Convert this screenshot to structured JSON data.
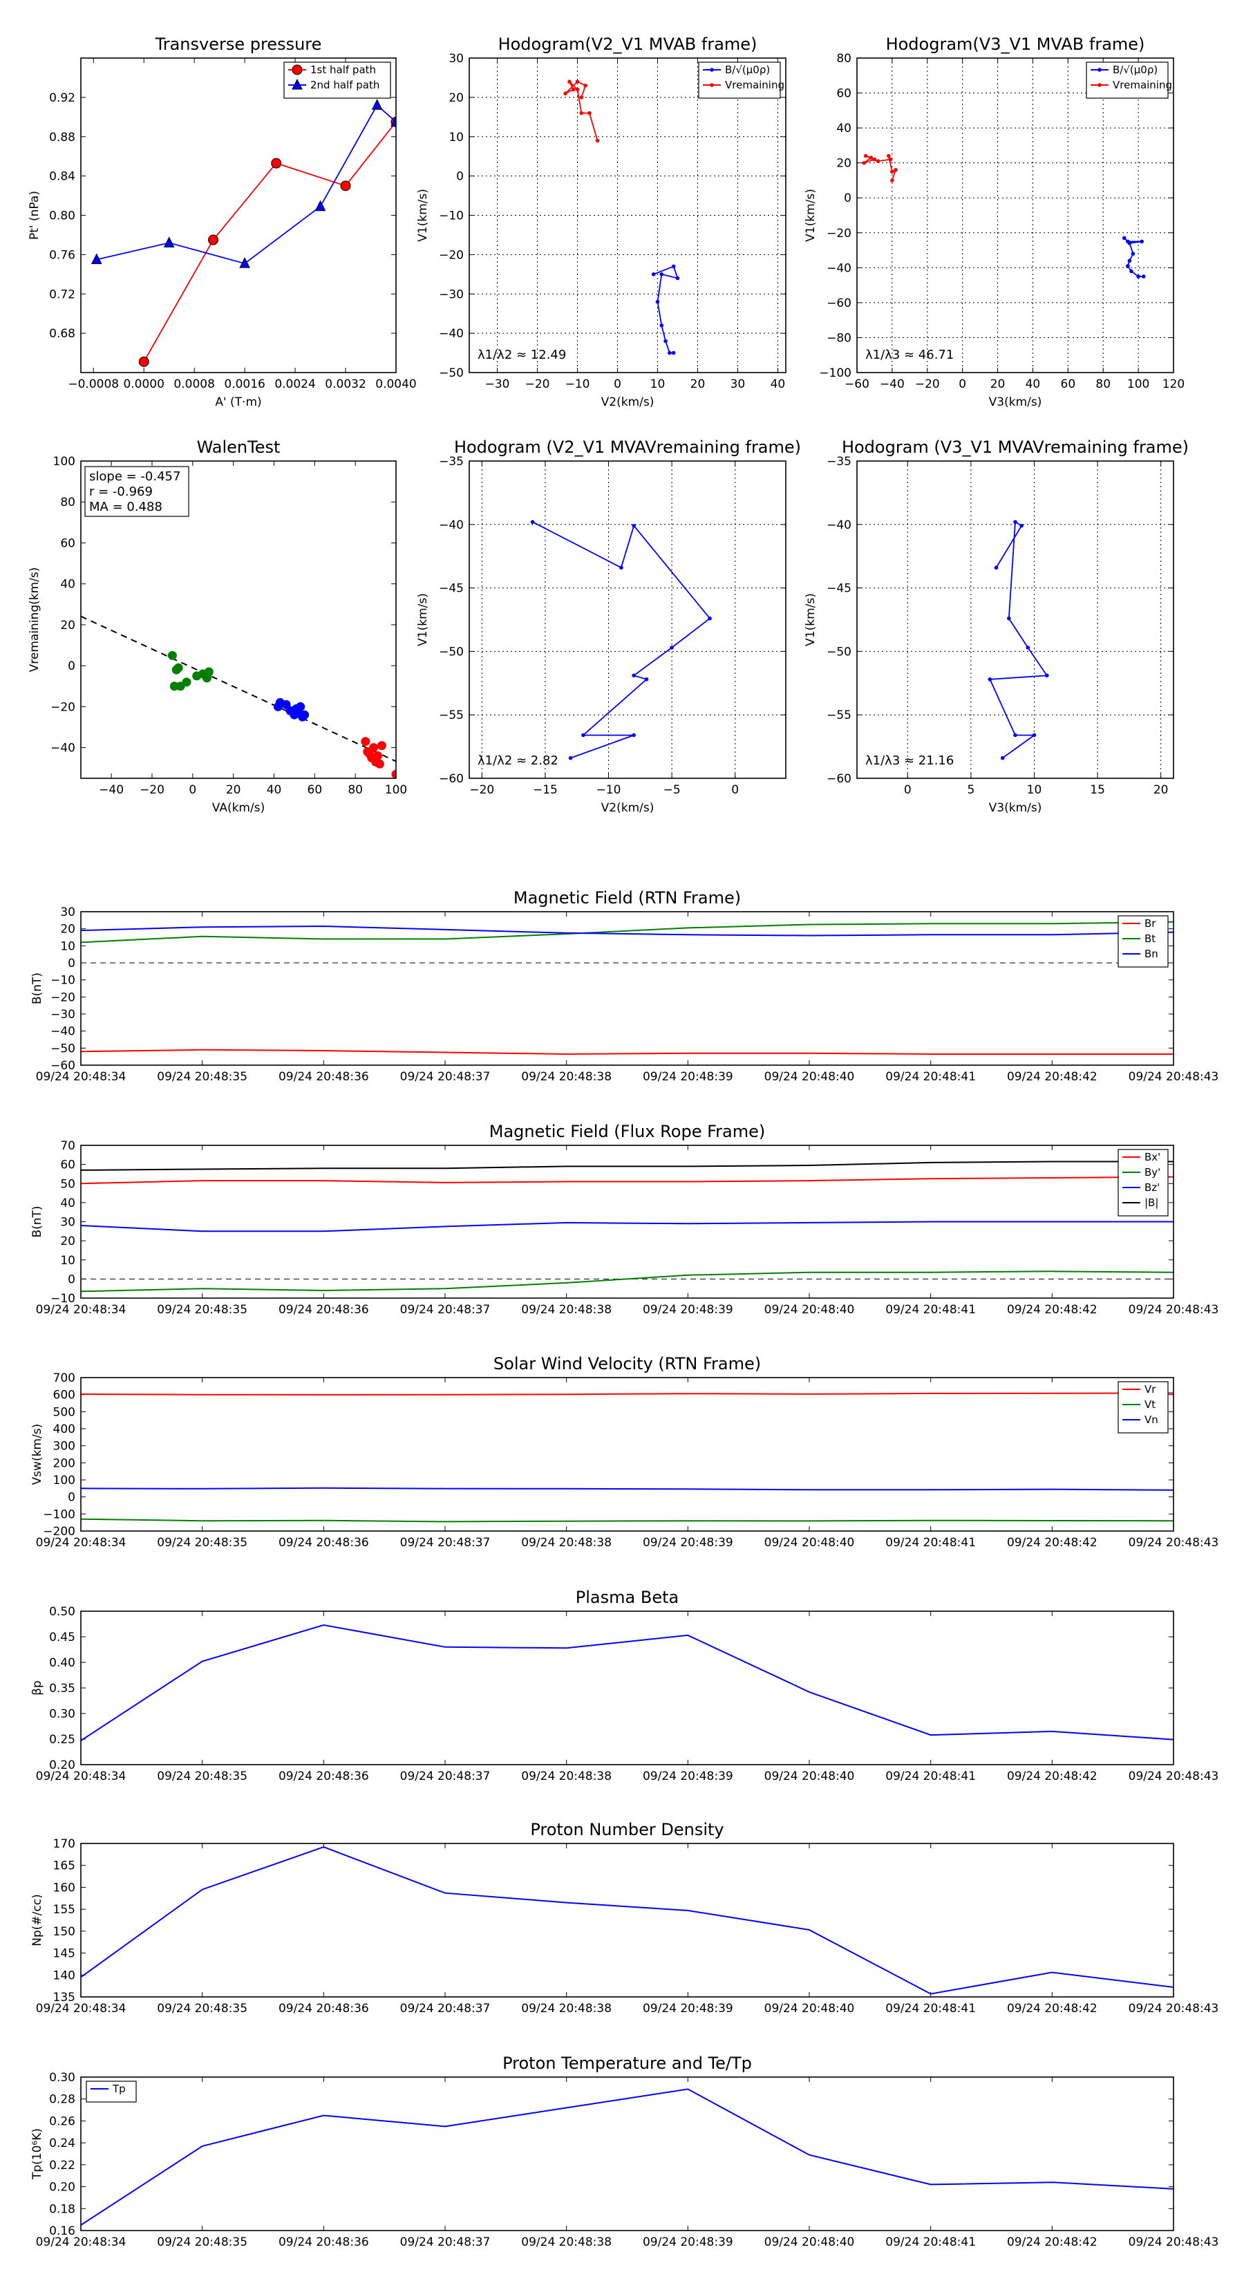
{
  "colors": {
    "red": "#ff0000",
    "green": "#008000",
    "blue": "#0000ff",
    "black": "#000000",
    "grid": "#000000"
  },
  "chart_data": [
    {
      "type": "line",
      "id": "tp",
      "title": "Transverse pressure",
      "xlabel": "A' (T·m)",
      "ylabel": "Pt' (nPa)",
      "xlim": [
        -0.001,
        0.004
      ],
      "ylim": [
        0.64,
        0.96
      ],
      "xticks": [
        -0.0008,
        0.0,
        0.0008,
        0.0016,
        0.0024,
        0.0032,
        0.004
      ],
      "xtick_labels": [
        "−0.0008",
        "0.0000",
        "0.0008",
        "0.0016",
        "0.0024",
        "0.0032",
        "0.0040"
      ],
      "yticks": [
        0.68,
        0.72,
        0.76,
        0.8,
        0.84,
        0.88,
        0.92
      ],
      "ytick_labels": [
        "0.68",
        "0.72",
        "0.76",
        "0.80",
        "0.84",
        "0.88",
        "0.92"
      ],
      "grid": false,
      "legend": "top-right",
      "series": [
        {
          "name": "1st half path",
          "color": "red",
          "marker": "circle",
          "x": [
            0.0,
            0.0011,
            0.0021,
            0.0032,
            0.004
          ],
          "y": [
            0.651,
            0.775,
            0.853,
            0.83,
            0.895
          ]
        },
        {
          "name": "2nd half path",
          "color": "blue",
          "marker": "triangle",
          "x": [
            -0.00075,
            0.0004,
            0.0016,
            0.0028,
            0.0037,
            0.004
          ],
          "y": [
            0.755,
            0.772,
            0.751,
            0.809,
            0.912,
            0.895
          ]
        }
      ]
    },
    {
      "type": "line",
      "id": "hodo1",
      "title": "Hodogram(V2_V1 MVAB frame)",
      "xlabel": "V2(km/s)",
      "ylabel": "V1(km/s)",
      "xlim": [
        -37,
        42
      ],
      "ylim": [
        -50,
        30
      ],
      "xticks": [
        -30,
        -20,
        -10,
        0,
        10,
        20,
        30,
        40
      ],
      "xtick_labels": [
        "−30",
        "−20",
        "−10",
        "0",
        "10",
        "20",
        "30",
        "40"
      ],
      "yticks": [
        -50,
        -40,
        -30,
        -20,
        -10,
        0,
        10,
        20,
        30
      ],
      "ytick_labels": [
        "−50",
        "−40",
        "−30",
        "−20",
        "−10",
        "0",
        "10",
        "20",
        "30"
      ],
      "grid": true,
      "legend": "top-right",
      "annotation": "λ1/λ2 ≈ 12.49",
      "series": [
        {
          "name": "B/√(μ0ρ)",
          "color": "blue",
          "marker": "dot",
          "x": [
            9,
            14,
            15,
            11,
            10,
            11,
            12,
            13,
            14
          ],
          "y": [
            -25,
            -23,
            -26,
            -25,
            -32,
            -38,
            -42,
            -45,
            -45
          ]
        },
        {
          "name": "Vremaining",
          "color": "red",
          "marker": "dot",
          "x": [
            -5,
            -7,
            -9,
            -10,
            -12,
            -11,
            -13,
            -10,
            -8,
            -9
          ],
          "y": [
            9,
            16,
            16,
            22,
            24,
            22,
            21,
            24,
            23,
            20
          ]
        }
      ]
    },
    {
      "type": "line",
      "id": "hodo2",
      "title": "Hodogram(V3_V1 MVAB frame)",
      "xlabel": "V3(km/s)",
      "ylabel": "V1(km/s)",
      "xlim": [
        -60,
        120
      ],
      "ylim": [
        -100,
        80
      ],
      "xticks": [
        -60,
        -40,
        -20,
        0,
        20,
        40,
        60,
        80,
        100,
        120
      ],
      "xtick_labels": [
        "−60",
        "−40",
        "−20",
        "0",
        "20",
        "40",
        "60",
        "80",
        "100",
        "120"
      ],
      "yticks": [
        -100,
        -80,
        -60,
        -40,
        -20,
        0,
        20,
        40,
        60,
        80
      ],
      "ytick_labels": [
        "−100",
        "−80",
        "−60",
        "−40",
        "−20",
        "0",
        "20",
        "40",
        "60",
        "80"
      ],
      "grid": true,
      "legend": "top-right",
      "annotation": "λ1/λ3 ≈ 46.71",
      "series": [
        {
          "name": "B/√(μ0ρ)",
          "color": "blue",
          "marker": "dot",
          "x": [
            92,
            94,
            102,
            95,
            97,
            95,
            94,
            96,
            100,
            103
          ],
          "y": [
            -23,
            -25,
            -25,
            -26,
            -32,
            -36,
            -39,
            -42,
            -45,
            -45
          ]
        },
        {
          "name": "Vremaining",
          "color": "red",
          "marker": "dot",
          "x": [
            -40,
            -38,
            -40,
            -42,
            -41,
            -48,
            -55,
            -52,
            -56,
            -50
          ],
          "y": [
            10,
            16,
            15,
            24,
            22,
            21,
            24,
            23,
            20,
            22
          ]
        }
      ]
    },
    {
      "type": "scatter",
      "id": "walen",
      "title": "WalenTest",
      "xlabel": "VA(km/s)",
      "ylabel": "Vremaining(km/s)",
      "xlim": [
        -55,
        100
      ],
      "ylim": [
        -55,
        100
      ],
      "xticks": [
        -40,
        -20,
        0,
        20,
        40,
        60,
        80,
        100
      ],
      "xtick_labels": [
        "−40",
        "−20",
        "0",
        "20",
        "40",
        "60",
        "80",
        "100"
      ],
      "yticks": [
        -40,
        -20,
        0,
        20,
        40,
        60,
        80,
        100
      ],
      "ytick_labels": [
        "−40",
        "−20",
        "0",
        "20",
        "40",
        "60",
        "80",
        "100"
      ],
      "grid": false,
      "stats": [
        "slope = -0.457",
        "r = -0.969",
        "MA = 0.488"
      ],
      "fit": {
        "slope": -0.457,
        "intercept": -1.0,
        "style": "dashed"
      },
      "series": [
        {
          "name": "green",
          "color": "green",
          "x": [
            -10,
            -8,
            -7,
            -6,
            -3,
            2,
            5,
            7,
            8,
            -9
          ],
          "y": [
            5,
            -2,
            -1,
            -10,
            -8,
            -5,
            -4,
            -6,
            -3,
            -10
          ]
        },
        {
          "name": "blue",
          "color": "blue",
          "x": [
            42,
            43,
            46,
            48,
            50,
            52,
            53,
            54,
            55,
            51
          ],
          "y": [
            -20,
            -18,
            -19,
            -22,
            -24,
            -23,
            -20,
            -25,
            -24,
            -21
          ]
        },
        {
          "name": "red",
          "color": "red",
          "x": [
            85,
            86,
            88,
            89,
            90,
            91,
            92,
            93,
            100,
            87
          ],
          "y": [
            -37,
            -42,
            -45,
            -40,
            -47,
            -44,
            -48,
            -39,
            -53,
            -43
          ]
        }
      ]
    },
    {
      "type": "line",
      "id": "hodo3",
      "title": "Hodogram (V2_V1 MVAVremaining frame)",
      "xlabel": "V2(km/s)",
      "ylabel": "V1(km/s)",
      "xlim": [
        -21,
        4
      ],
      "ylim": [
        -60,
        -35
      ],
      "xticks": [
        -20,
        -15,
        -10,
        -5,
        0
      ],
      "xtick_labels": [
        "−20",
        "−15",
        "−10",
        "−5",
        "0"
      ],
      "yticks": [
        -60,
        -55,
        -50,
        -45,
        -40,
        -35
      ],
      "ytick_labels": [
        "−60",
        "−55",
        "−50",
        "−45",
        "−40",
        "−35"
      ],
      "grid": true,
      "annotation": "λ1/λ2 ≈ 2.82",
      "series": [
        {
          "name": "B",
          "color": "blue",
          "marker": "dot",
          "x": [
            -16,
            -9,
            -8,
            -2,
            -5,
            -8,
            -7,
            -12,
            -8,
            -13
          ],
          "y": [
            -39.8,
            -43.4,
            -40.1,
            -47.4,
            -49.7,
            -51.9,
            -52.2,
            -56.6,
            -56.6,
            -58.4
          ]
        }
      ]
    },
    {
      "type": "line",
      "id": "hodo4",
      "title": "Hodogram (V3_V1 MVAVremaining frame)",
      "xlabel": "V3(km/s)",
      "ylabel": "V1(km/s)",
      "xlim": [
        -4,
        21
      ],
      "ylim": [
        -60,
        -35
      ],
      "xticks": [
        0,
        5,
        10,
        15,
        20
      ],
      "xtick_labels": [
        "0",
        "5",
        "10",
        "15",
        "20"
      ],
      "yticks": [
        -60,
        -55,
        -50,
        -45,
        -40,
        -35
      ],
      "ytick_labels": [
        "−60",
        "−55",
        "−50",
        "−45",
        "−40",
        "−35"
      ],
      "grid": true,
      "annotation": "λ1/λ3 ≈ 21.16",
      "series": [
        {
          "name": "B",
          "color": "blue",
          "marker": "dot",
          "x": [
            7,
            9,
            8.5,
            8,
            9.5,
            11,
            6.5,
            8.5,
            10,
            7.5
          ],
          "y": [
            -43.4,
            -40.1,
            -39.8,
            -47.4,
            -49.7,
            -51.9,
            -52.2,
            -56.6,
            -56.6,
            -58.4
          ]
        }
      ]
    },
    {
      "type": "line",
      "id": "mag_rtn",
      "title": "Magnetic Field (RTN Frame)",
      "ylabel": "B(nT)",
      "categories": [
        "09/24 20:48:34",
        "09/24 20:48:35",
        "09/24 20:48:36",
        "09/24 20:48:37",
        "09/24 20:48:38",
        "09/24 20:48:39",
        "09/24 20:48:40",
        "09/24 20:48:41",
        "09/24 20:48:42",
        "09/24 20:48:43"
      ],
      "ylim": [
        -60,
        30
      ],
      "yticks": [
        -60,
        -50,
        -40,
        -30,
        -20,
        -10,
        0,
        10,
        20,
        30
      ],
      "ytick_labels": [
        "−60",
        "−50",
        "−40",
        "−30",
        "−20",
        "−10",
        "0",
        "10",
        "20",
        "30"
      ],
      "zero_line": true,
      "legend": "top-right",
      "series": [
        {
          "name": "Br",
          "color": "red",
          "values": [
            -52,
            -51,
            -51.5,
            -52.5,
            -53.5,
            -53,
            -53,
            -53.5,
            -53.5,
            -53.5
          ]
        },
        {
          "name": "Bt",
          "color": "green",
          "values": [
            12,
            15.5,
            14,
            14,
            17,
            20.5,
            22.5,
            23,
            23,
            24
          ]
        },
        {
          "name": "Bn",
          "color": "blue",
          "values": [
            19,
            21,
            21.5,
            19.5,
            17.5,
            16.5,
            16,
            16.5,
            16.5,
            18
          ]
        }
      ]
    },
    {
      "type": "line",
      "id": "mag_fr",
      "title": "Magnetic Field (Flux Rope Frame)",
      "ylabel": "B(nT)",
      "categories": [
        "09/24 20:48:34",
        "09/24 20:48:35",
        "09/24 20:48:36",
        "09/24 20:48:37",
        "09/24 20:48:38",
        "09/24 20:48:39",
        "09/24 20:48:40",
        "09/24 20:48:41",
        "09/24 20:48:42",
        "09/24 20:48:43"
      ],
      "ylim": [
        -10,
        70
      ],
      "yticks": [
        -10,
        0,
        10,
        20,
        30,
        40,
        50,
        60,
        70
      ],
      "ytick_labels": [
        "−10",
        "0",
        "10",
        "20",
        "30",
        "40",
        "50",
        "60",
        "70"
      ],
      "zero_line": true,
      "legend": "top-right",
      "series": [
        {
          "name": "Bx'",
          "color": "red",
          "values": [
            50,
            51.5,
            51.5,
            50.5,
            51,
            51,
            51.5,
            52.5,
            53,
            53.5
          ]
        },
        {
          "name": "By'",
          "color": "green",
          "values": [
            -6.5,
            -5,
            -6,
            -5,
            -2,
            2,
            3.5,
            3.5,
            4,
            3.5
          ]
        },
        {
          "name": "Bz'",
          "color": "blue",
          "values": [
            28,
            25,
            25,
            27.5,
            29.5,
            29,
            29.5,
            30,
            30,
            30
          ]
        },
        {
          "name": "|B|",
          "color": "black",
          "values": [
            57,
            57.5,
            58,
            58,
            59,
            59,
            59.5,
            61,
            61.5,
            61.5
          ]
        }
      ]
    },
    {
      "type": "line",
      "id": "vel",
      "title": "Solar Wind Velocity (RTN Frame)",
      "ylabel": "Vsw(km/s)",
      "categories": [
        "09/24 20:48:34",
        "09/24 20:48:35",
        "09/24 20:48:36",
        "09/24 20:48:37",
        "09/24 20:48:38",
        "09/24 20:48:39",
        "09/24 20:48:40",
        "09/24 20:48:41",
        "09/24 20:48:42",
        "09/24 20:48:43"
      ],
      "ylim": [
        -200,
        700
      ],
      "yticks": [
        -200,
        -100,
        0,
        100,
        200,
        300,
        400,
        500,
        600,
        700
      ],
      "ytick_labels": [
        "−200",
        "−100",
        "0",
        "100",
        "200",
        "300",
        "400",
        "500",
        "600",
        "700"
      ],
      "legend": "top-right",
      "series": [
        {
          "name": "Vr",
          "color": "red",
          "values": [
            603,
            600,
            599,
            600,
            602,
            606,
            603,
            607,
            608,
            609
          ]
        },
        {
          "name": "Vt",
          "color": "green",
          "values": [
            -130,
            -140,
            -138,
            -145,
            -142,
            -140,
            -141,
            -138,
            -139,
            -140
          ]
        },
        {
          "name": "Vn",
          "color": "blue",
          "values": [
            50,
            48,
            52,
            49,
            48,
            46,
            42,
            42,
            45,
            40
          ]
        }
      ]
    },
    {
      "type": "line",
      "id": "beta",
      "title": "Plasma Beta",
      "ylabel": "βp",
      "categories": [
        "09/24 20:48:34",
        "09/24 20:48:35",
        "09/24 20:48:36",
        "09/24 20:48:37",
        "09/24 20:48:38",
        "09/24 20:48:39",
        "09/24 20:48:40",
        "09/24 20:48:41",
        "09/24 20:48:42",
        "09/24 20:48:43"
      ],
      "ylim": [
        0.2,
        0.5
      ],
      "yticks": [
        0.2,
        0.25,
        0.3,
        0.35,
        0.4,
        0.45,
        0.5
      ],
      "ytick_labels": [
        "0.20",
        "0.25",
        "0.30",
        "0.35",
        "0.40",
        "0.45",
        "0.50"
      ],
      "series": [
        {
          "name": "beta",
          "color": "blue",
          "values": [
            0.247,
            0.402,
            0.473,
            0.43,
            0.428,
            0.453,
            0.342,
            0.258,
            0.265,
            0.249
          ]
        }
      ]
    },
    {
      "type": "line",
      "id": "np",
      "title": "Proton Number Density",
      "ylabel": "Np(#/cc)",
      "categories": [
        "09/24 20:48:34",
        "09/24 20:48:35",
        "09/24 20:48:36",
        "09/24 20:48:37",
        "09/24 20:48:38",
        "09/24 20:48:39",
        "09/24 20:48:40",
        "09/24 20:48:41",
        "09/24 20:48:42",
        "09/24 20:48:43"
      ],
      "ylim": [
        135,
        170
      ],
      "yticks": [
        135,
        140,
        145,
        150,
        155,
        160,
        165,
        170
      ],
      "ytick_labels": [
        "135",
        "140",
        "145",
        "150",
        "155",
        "160",
        "165",
        "170"
      ],
      "series": [
        {
          "name": "Np",
          "color": "blue",
          "values": [
            139.5,
            159.5,
            169.2,
            158.7,
            156.5,
            154.7,
            150.3,
            135.7,
            140.6,
            137.2
          ]
        }
      ]
    },
    {
      "type": "line",
      "id": "temp",
      "title": "Proton Temperature and Te/Tp",
      "ylabel": "Tp(10⁶K)",
      "categories": [
        "09/24 20:48:34",
        "09/24 20:48:35",
        "09/24 20:48:36",
        "09/24 20:48:37",
        "09/24 20:48:38",
        "09/24 20:48:39",
        "09/24 20:48:40",
        "09/24 20:48:41",
        "09/24 20:48:42",
        "09/24 20:48:43"
      ],
      "ylim": [
        0.16,
        0.3
      ],
      "yticks": [
        0.16,
        0.18,
        0.2,
        0.22,
        0.24,
        0.26,
        0.28,
        0.3
      ],
      "ytick_labels": [
        "0.16",
        "0.18",
        "0.20",
        "0.22",
        "0.24",
        "0.26",
        "0.28",
        "0.30"
      ],
      "legend": "top-left",
      "series": [
        {
          "name": "Tp",
          "color": "blue",
          "values": [
            0.165,
            0.237,
            0.265,
            0.255,
            0.272,
            0.289,
            0.229,
            0.202,
            0.204,
            0.198
          ]
        }
      ]
    }
  ]
}
